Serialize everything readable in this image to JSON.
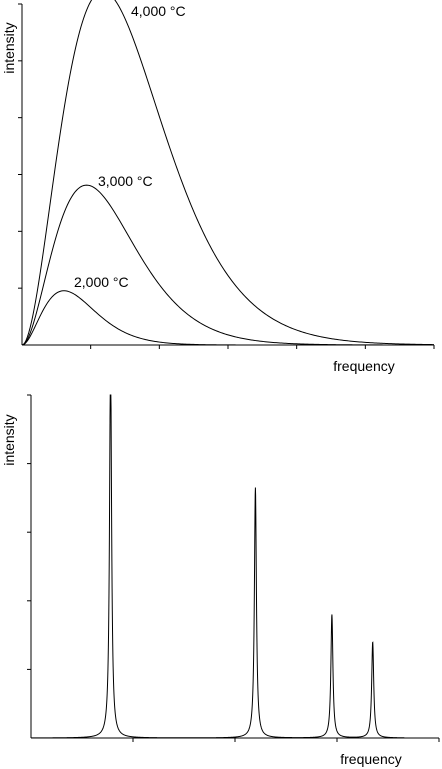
{
  "chart_data": [
    {
      "type": "line",
      "title": "",
      "xlabel": "frequency",
      "ylabel": "intensity",
      "xlim": [
        0,
        12
      ],
      "ylim": [
        0,
        6
      ],
      "x_ticks": 6,
      "y_ticks": 6,
      "grid": false,
      "legend": "none",
      "series": [
        {
          "label": "4,000 °C",
          "peak_x": 2.5,
          "peak_y": 6.2
        },
        {
          "label": "3,000 °C",
          "peak_x": 2.0,
          "peak_y": 2.8
        },
        {
          "label": "2,000 °C",
          "peak_x": 1.3,
          "peak_y": 0.95
        }
      ]
    },
    {
      "type": "line",
      "title": "",
      "xlabel": "frequency",
      "ylabel": "intensity",
      "xlim": [
        0,
        4
      ],
      "ylim": [
        0,
        5
      ],
      "x_ticks": 4,
      "y_ticks": 5,
      "grid": false,
      "legend": "none",
      "peaks": [
        {
          "x": 0.78,
          "y": 5.6
        },
        {
          "x": 2.2,
          "y": 3.65
        },
        {
          "x": 2.95,
          "y": 1.8
        },
        {
          "x": 3.35,
          "y": 1.4
        }
      ]
    }
  ]
}
